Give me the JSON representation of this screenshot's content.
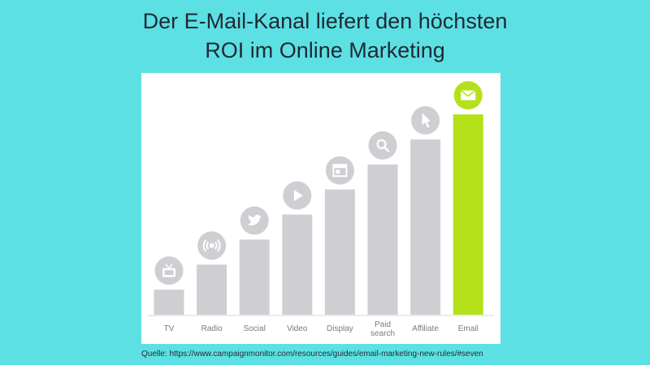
{
  "title": {
    "line1": "Der E-Mail-Kanal liefert den höchsten",
    "line2": "ROI im Online Marketing"
  },
  "source": "Quelle: https://www.campaignmonitor.com/resources/guides/email-marketing-new-rules/#seven",
  "chart_data": {
    "type": "bar",
    "categories": [
      "TV",
      "Radio",
      "Social",
      "Video",
      "Display",
      "Paid search",
      "Affiliate",
      "Email"
    ],
    "category_labels": [
      [
        "TV"
      ],
      [
        "Radio"
      ],
      [
        "Social"
      ],
      [
        "Video"
      ],
      [
        "Display"
      ],
      [
        "Paid",
        "search"
      ],
      [
        "Affiliate"
      ],
      [
        "Email"
      ]
    ],
    "values": [
      1,
      2,
      3,
      4,
      5,
      6,
      7,
      8
    ],
    "icons": [
      "tv-icon",
      "radio-broadcast-icon",
      "twitter-bird-icon",
      "play-icon",
      "browser-window-icon",
      "search-icon",
      "cursor-pointer-icon",
      "envelope-icon"
    ],
    "ylim": [
      0,
      8
    ],
    "grid": false,
    "colors": {
      "default": "#cfcfd3",
      "highlight": "#b4e11a",
      "icon_bg": "#cfcfd3",
      "icon_fg": "#ffffff",
      "axis": "#d9d9dc",
      "label": "#7a7a80"
    },
    "highlight_index": 7
  }
}
